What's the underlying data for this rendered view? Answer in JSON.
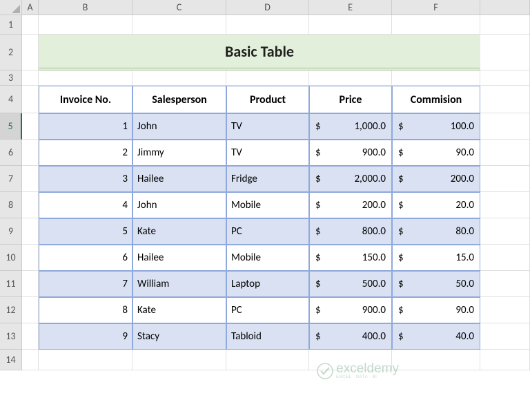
{
  "columns": [
    "A",
    "B",
    "C",
    "D",
    "E",
    "F"
  ],
  "rows": [
    "1",
    "2",
    "3",
    "4",
    "5",
    "6",
    "7",
    "8",
    "9",
    "10",
    "11",
    "12",
    "13",
    "14"
  ],
  "selectedRowHeader": "5",
  "title": "Basic Table",
  "headers": [
    "Invoice No.",
    "Salesperson",
    "Product",
    "Price",
    "Commision"
  ],
  "currencySymbol": "$",
  "data": [
    {
      "invoice": "1",
      "sales": "John",
      "product": "TV",
      "price": "1,000.0",
      "comm": "100.0"
    },
    {
      "invoice": "2",
      "sales": "Jimmy",
      "product": "TV",
      "price": "900.0",
      "comm": "90.0"
    },
    {
      "invoice": "3",
      "sales": "Hailee",
      "product": "Fridge",
      "price": "2,000.0",
      "comm": "200.0"
    },
    {
      "invoice": "4",
      "sales": "John",
      "product": "Mobile",
      "price": "200.0",
      "comm": "20.0"
    },
    {
      "invoice": "5",
      "sales": "Kate",
      "product": "PC",
      "price": "800.0",
      "comm": "80.0"
    },
    {
      "invoice": "6",
      "sales": "Hailee",
      "product": "Mobile",
      "price": "150.0",
      "comm": "15.0"
    },
    {
      "invoice": "7",
      "sales": "William",
      "product": "Laptop",
      "price": "500.0",
      "comm": "50.0"
    },
    {
      "invoice": "8",
      "sales": "Kate",
      "product": "PC",
      "price": "900.0",
      "comm": "90.0"
    },
    {
      "invoice": "9",
      "sales": "Stacy",
      "product": "Tabloid",
      "price": "400.0",
      "comm": "40.0"
    }
  ],
  "colors": {
    "titleBg": "#e2efda",
    "bandOdd": "#d9e1f2",
    "bandEven": "#ffffff",
    "border": "#8ea9db",
    "hdrBg": "#e6e6e6"
  },
  "watermark": {
    "brand": "exceldemy",
    "sub": "EXCEL · DATA · BI"
  }
}
